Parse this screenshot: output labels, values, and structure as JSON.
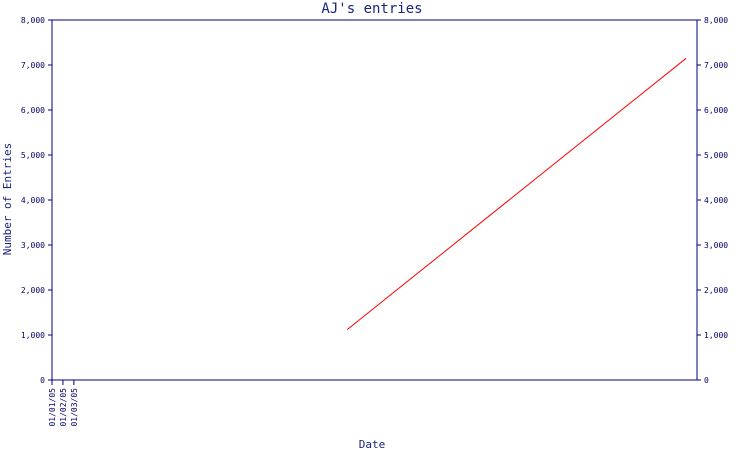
{
  "colors": {
    "axis": "#000080",
    "title": "#1a237e",
    "line": "#ff0000",
    "background": "#ffffff"
  },
  "chart_data": {
    "type": "line",
    "title": "AJ's entries",
    "xlabel": "Date",
    "ylabel": "Number of Entries",
    "x_ticks": [
      "01/01/05",
      "01/02/05",
      "01/03/05"
    ],
    "y_ticks_left": [
      "0",
      "1,000",
      "2,000",
      "3,000",
      "4,000",
      "5,000",
      "6,000",
      "7,000",
      "8,000"
    ],
    "y_ticks_right": [
      "0",
      "1,000",
      "2,000",
      "3,000",
      "4,000",
      "5,000",
      "6,000",
      "7,000",
      "8,000"
    ],
    "xlim": [
      "2005-01-01",
      "2005-03-01"
    ],
    "ylim": [
      0,
      8000
    ],
    "grid": false,
    "legend": "none",
    "series": [
      {
        "color": "#ff0000",
        "points": [
          {
            "x": "2005-01-28",
            "y": 1120
          },
          {
            "x": "2005-02-28",
            "y": 7150
          }
        ]
      }
    ]
  }
}
